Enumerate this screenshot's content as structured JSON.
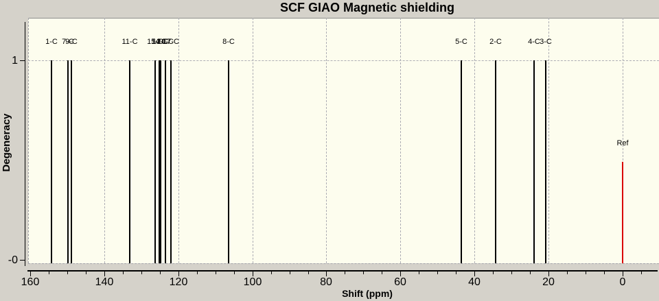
{
  "title": "SCF GIAO Magnetic shielding",
  "axes": {
    "x_label": "Shift (ppm)",
    "y_label": "Degeneracy"
  },
  "colors": {
    "window_background": "#d5d2ca",
    "plot_background": "#fdfdee",
    "grid": "#adadb4",
    "peak": "#000000",
    "reference": "#d90000"
  },
  "chart_data": {
    "type": "bar",
    "subtype": "stick-spectrum",
    "title": "SCF GIAO Magnetic shielding",
    "xlabel": "Shift (ppm)",
    "ylabel": "Degeneracy",
    "x_axis": {
      "reversed": true,
      "visible_range": [
        165,
        -10
      ],
      "major_ticks": [
        160,
        140,
        120,
        100,
        80,
        60,
        40,
        20,
        0
      ],
      "minor_tick_step": 5,
      "minor_ticks_extend_to": -5,
      "grid_ticks": [
        140,
        120,
        100,
        80,
        60,
        40,
        20,
        0
      ]
    },
    "y_axis": {
      "min": 0,
      "max": 1.21,
      "ticks": [
        {
          "value": 1,
          "label": "1"
        },
        {
          "value": 0,
          "label": "-0"
        }
      ],
      "grid_values": [
        1
      ]
    },
    "peaks": [
      {
        "label": "1-C",
        "shift_ppm": 154.2,
        "degeneracy": 1
      },
      {
        "label": "7-C",
        "shift_ppm": 149.8,
        "degeneracy": 1
      },
      {
        "label": "9-C",
        "shift_ppm": 148.9,
        "degeneracy": 1
      },
      {
        "label": "11-C",
        "shift_ppm": 133.1,
        "degeneracy": 1
      },
      {
        "label": "15-C",
        "shift_ppm": 126.3,
        "degeneracy": 1
      },
      {
        "label": "14-C",
        "shift_ppm": 125.2,
        "degeneracy": 1
      },
      {
        "label": "12-C",
        "shift_ppm": 124.7,
        "degeneracy": 1
      },
      {
        "label": "10-C",
        "shift_ppm": 123.5,
        "degeneracy": 1
      },
      {
        "label": "17-C",
        "shift_ppm": 121.9,
        "degeneracy": 1
      },
      {
        "label": "8-C",
        "shift_ppm": 106.4,
        "degeneracy": 1
      },
      {
        "label": "5-C",
        "shift_ppm": 43.6,
        "degeneracy": 1
      },
      {
        "label": "2-C",
        "shift_ppm": 34.3,
        "degeneracy": 1
      },
      {
        "label": "4-C",
        "shift_ppm": 23.9,
        "degeneracy": 1
      },
      {
        "label": "3-C",
        "shift_ppm": 20.8,
        "degeneracy": 1
      }
    ],
    "reference": {
      "label": "Ref",
      "shift_ppm": 0.0,
      "height": 0.5
    }
  }
}
